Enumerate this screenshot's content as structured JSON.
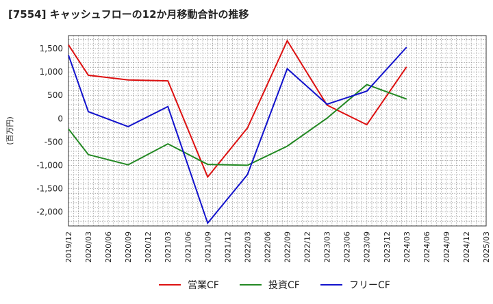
{
  "chart_data": {
    "type": "line",
    "title": "[7554]  キャッシュフローの12か月移動合計の推移",
    "ylabel": "(百万円)",
    "xlabel": "",
    "ylim": [
      -2300,
      1780
    ],
    "yticks": [
      1500,
      1000,
      500,
      0,
      -500,
      -1000,
      -1500,
      -2000
    ],
    "ytick_labels": [
      "1,500",
      "1,000",
      "500",
      "0",
      "-500",
      "-1,000",
      "-1,500",
      "-2,000"
    ],
    "x_ticks": [
      "2019/12",
      "2020/03",
      "2020/06",
      "2020/09",
      "2020/12",
      "2021/03",
      "2021/06",
      "2021/09",
      "2021/12",
      "2022/03",
      "2022/06",
      "2022/09",
      "2022/12",
      "2023/03",
      "2023/06",
      "2023/09",
      "2023/12",
      "2024/03",
      "2024/06",
      "2024/09",
      "2024/12",
      "2025/03"
    ],
    "grid": true,
    "legend_position": "bottom",
    "series": [
      {
        "name": "営業CF",
        "color": "#dd1111",
        "points": [
          [
            "2019/12",
            1580
          ],
          [
            "2020/03",
            930
          ],
          [
            "2020/09",
            830
          ],
          [
            "2021/03",
            810
          ],
          [
            "2021/09",
            -1250
          ],
          [
            "2022/03",
            -200
          ],
          [
            "2022/09",
            1670
          ],
          [
            "2023/03",
            290
          ],
          [
            "2023/09",
            -130
          ],
          [
            "2024/03",
            1110
          ]
        ]
      },
      {
        "name": "投資CF",
        "color": "#228822",
        "points": [
          [
            "2019/12",
            -220
          ],
          [
            "2020/03",
            -770
          ],
          [
            "2020/09",
            -990
          ],
          [
            "2021/03",
            -540
          ],
          [
            "2021/09",
            -980
          ],
          [
            "2022/03",
            -1000
          ],
          [
            "2022/09",
            -590
          ],
          [
            "2023/03",
            10
          ],
          [
            "2023/09",
            730
          ],
          [
            "2024/03",
            420
          ]
        ]
      },
      {
        "name": "フリーCF",
        "color": "#1111cc",
        "points": [
          [
            "2019/12",
            1360
          ],
          [
            "2020/03",
            150
          ],
          [
            "2020/09",
            -170
          ],
          [
            "2021/03",
            260
          ],
          [
            "2021/09",
            -2240
          ],
          [
            "2022/03",
            -1200
          ],
          [
            "2022/09",
            1070
          ],
          [
            "2023/03",
            310
          ],
          [
            "2023/09",
            590
          ],
          [
            "2024/03",
            1530
          ]
        ]
      }
    ]
  }
}
